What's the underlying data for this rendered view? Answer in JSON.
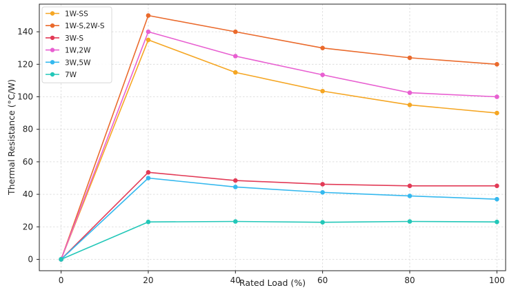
{
  "chart_data": {
    "type": "line",
    "title": "",
    "xlabel": "Rated Load (%)",
    "ylabel": "Thermal Resistance (°C/W)",
    "x": [
      0,
      20,
      40,
      60,
      80,
      100
    ],
    "xlim": [
      -5,
      102
    ],
    "ylim": [
      -7,
      157
    ],
    "x_ticks": [
      0,
      20,
      40,
      60,
      80,
      100
    ],
    "y_ticks": [
      0,
      20,
      40,
      60,
      80,
      100,
      120,
      140
    ],
    "grid": true,
    "legend_position": "top-left",
    "series": [
      {
        "name": "1W-SS",
        "color": "#f5a623",
        "values": [
          0,
          135,
          115,
          103.5,
          95,
          90
        ]
      },
      {
        "name": "1W-S,2W-S",
        "color": "#ea6a2c",
        "values": [
          0,
          150,
          140,
          130,
          124,
          120
        ]
      },
      {
        "name": "3W-S",
        "color": "#e23a56",
        "values": [
          0,
          53.5,
          48.5,
          46.2,
          45.2,
          45.2
        ]
      },
      {
        "name": "1W,2W",
        "color": "#e85fd1",
        "values": [
          0,
          140,
          125,
          113.5,
          102.5,
          100
        ]
      },
      {
        "name": "3W,5W",
        "color": "#34b8ee",
        "values": [
          0,
          50,
          44.5,
          41.2,
          39,
          37
        ]
      },
      {
        "name": "7W",
        "color": "#22c7b8",
        "values": [
          0,
          23,
          23.3,
          22.8,
          23.3,
          23
        ]
      }
    ]
  }
}
